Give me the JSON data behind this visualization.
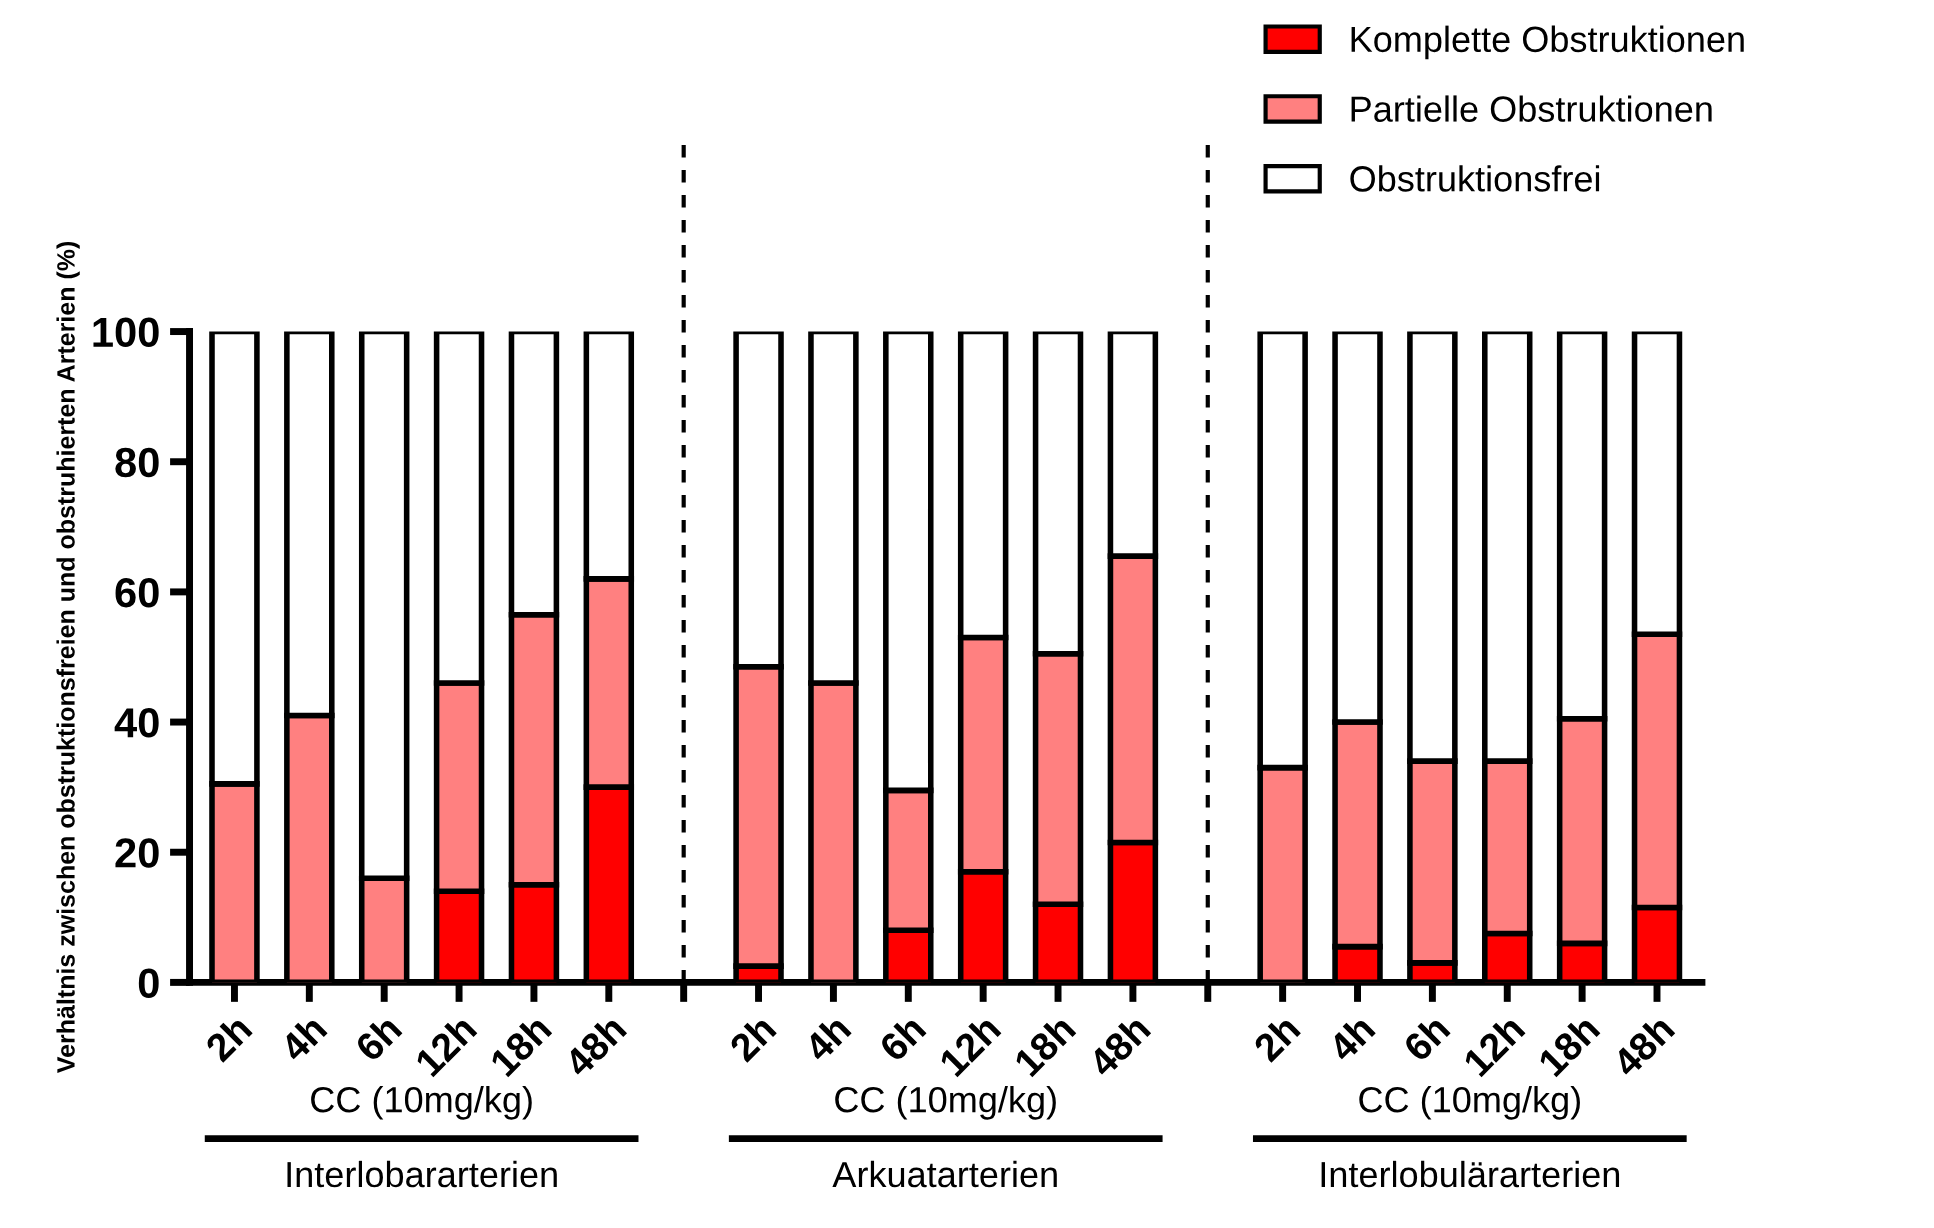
{
  "chart_data": {
    "type": "bar",
    "stacked": true,
    "categories": [
      "2h",
      "4h",
      "6h",
      "12h",
      "18h",
      "48h",
      null,
      "2h",
      "4h",
      "6h",
      "12h",
      "18h",
      "48h",
      null,
      "2h",
      "4h",
      "6h",
      "12h",
      "18h",
      "48h"
    ],
    "series": [
      {
        "name": "Komplette Obstruktionen",
        "color": "#ff0000",
        "values": [
          0,
          0,
          0,
          14,
          15,
          30,
          null,
          2.5,
          0,
          8,
          17,
          12,
          21.5,
          null,
          0,
          5.5,
          3,
          7.5,
          6,
          11.5
        ]
      },
      {
        "name": "Partielle Obstruktionen",
        "color": "#ff8080",
        "values": [
          30.5,
          41,
          16,
          32,
          41.5,
          32,
          null,
          46,
          46,
          21.5,
          36,
          38.5,
          44,
          null,
          33,
          34.5,
          31,
          26.5,
          34.5,
          42
        ]
      },
      {
        "name": "Obstruktionsfrei",
        "color": "#ffffff",
        "values": [
          69.5,
          59,
          84,
          54,
          43.5,
          38,
          null,
          51.5,
          54,
          70.5,
          47,
          49.5,
          34.5,
          null,
          67,
          60,
          66,
          66,
          59.5,
          46.5
        ]
      }
    ],
    "ylabel": "Verhältnis zwischen obstruktionsfreien und obstruhierten Arterien (%)",
    "ylim": [
      0,
      100
    ],
    "yticks": [
      0,
      20,
      40,
      60,
      80,
      100
    ],
    "annotations": [
      "CC (10mg/kg)",
      "Interlobararterien",
      "CC (10mg/kg)",
      "Arkuatarterien",
      "CC (10mg/kg)",
      "Interlobulärarterien"
    ],
    "legend": "top right"
  }
}
